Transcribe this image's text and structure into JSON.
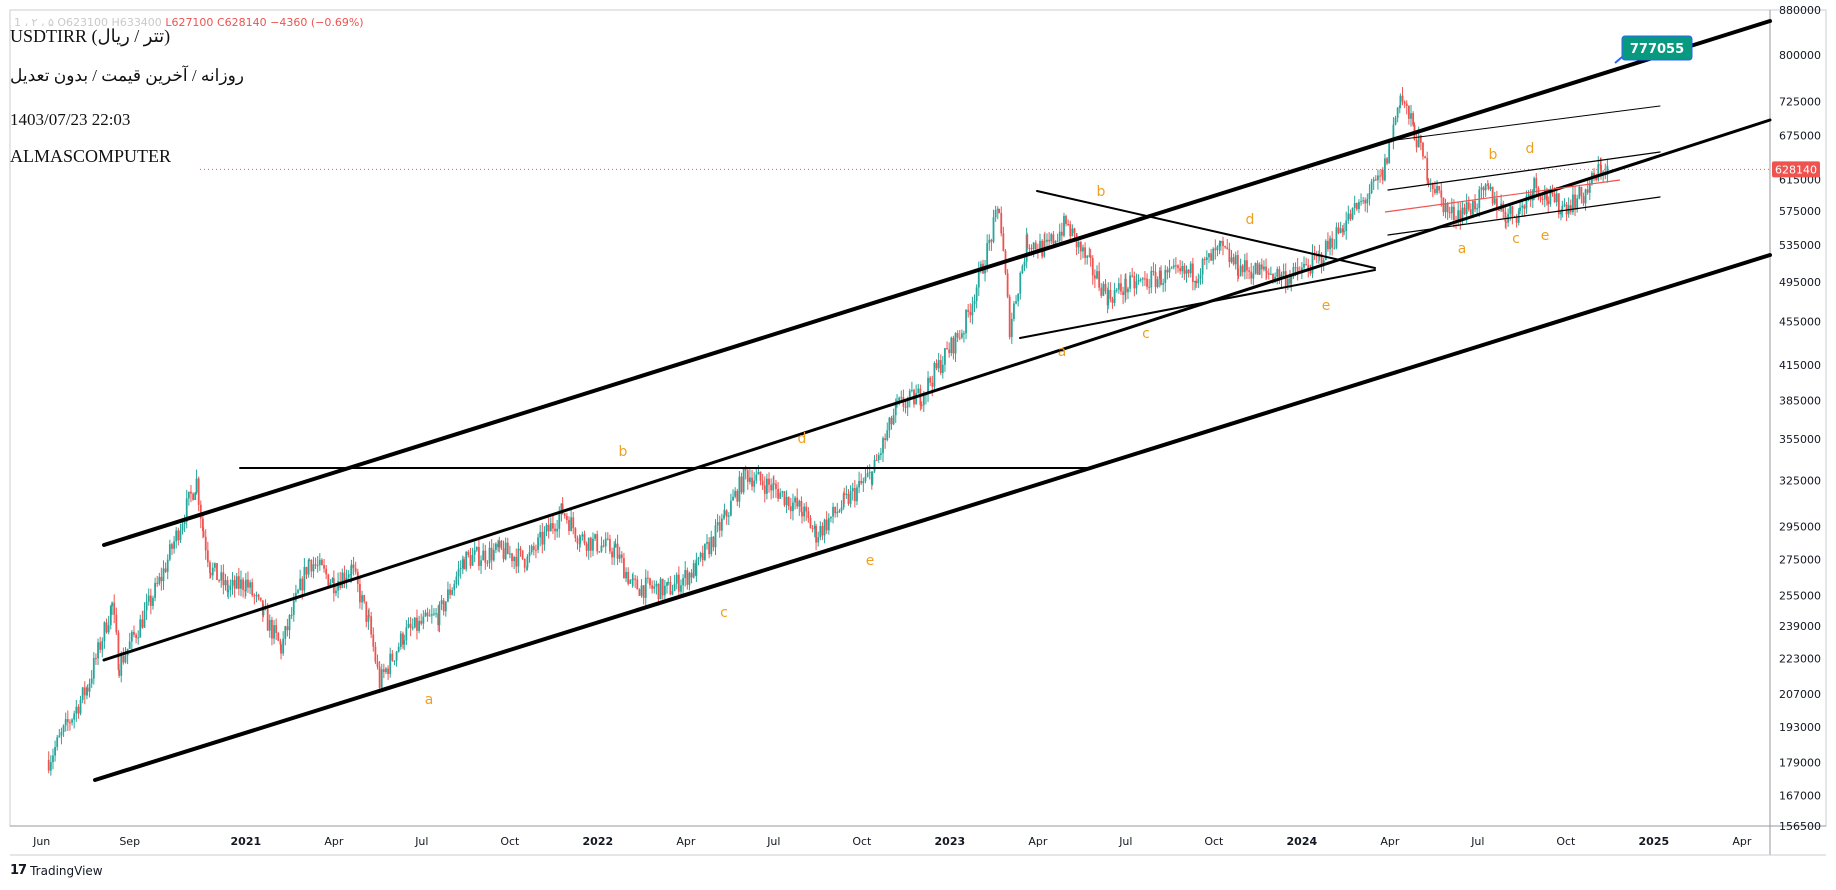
{
  "symbol_title": "USDTIRR (تتر / ریال)",
  "subtitle": "روزانه / آخرین قیمت / بدون تعدیل",
  "datetime": "1403/07/23 22:03",
  "author": "ALMASCOMPUTER",
  "ohlc": {
    "faded": "1 ، ۲ ، ۵ O623100 H633400",
    "low": "L627100",
    "close": "C628140",
    "change": "−4360 (−0.69%)"
  },
  "brand": {
    "name": "TradingView",
    "mark": "17"
  },
  "colors": {
    "up": "#26a69a",
    "down": "#ef5350",
    "wave_label": "#f0a020",
    "target_badge": "#089981",
    "price_badge": "#ef5350",
    "channel": "#000000"
  },
  "chart_data": {
    "type": "candlestick",
    "scale": "log",
    "ylim": [
      156500,
      880000
    ],
    "y_ticks": [
      "880000",
      "800000",
      "725000",
      "675000",
      "615000",
      "575000",
      "535000",
      "495000",
      "455000",
      "415000",
      "385000",
      "355000",
      "325000",
      "295000",
      "275000",
      "255000",
      "239000",
      "223000",
      "207000",
      "193000",
      "179000",
      "167000",
      "156500"
    ],
    "x_ticks": [
      "Jun",
      "Sep",
      "2021",
      "Apr",
      "Jul",
      "Oct",
      "2022",
      "Apr",
      "Jul",
      "Oct",
      "2023",
      "Apr",
      "Jul",
      "Oct",
      "2024",
      "Apr",
      "Jul",
      "Oct",
      "2025",
      "Apr"
    ],
    "current_price": "628140",
    "target_label": "777055",
    "wave_labels": [
      "a",
      "b",
      "c",
      "d",
      "e",
      "a",
      "b",
      "c",
      "d",
      "e",
      "a",
      "b",
      "c",
      "d",
      "e"
    ],
    "grid": false,
    "price_path": [
      [
        2020.44,
        180000
      ],
      [
        2020.55,
        210000
      ],
      [
        2020.62,
        250000
      ],
      [
        2020.64,
        220000
      ],
      [
        2020.7,
        240000
      ],
      [
        2020.76,
        265000
      ],
      [
        2020.82,
        300000
      ],
      [
        2020.86,
        325000
      ],
      [
        2020.88,
        290000
      ],
      [
        2020.9,
        270000
      ],
      [
        2020.95,
        258000
      ],
      [
        2021.0,
        262000
      ],
      [
        2021.05,
        245000
      ],
      [
        2021.1,
        228000
      ],
      [
        2021.18,
        275000
      ],
      [
        2021.25,
        262000
      ],
      [
        2021.3,
        270000
      ],
      [
        2021.35,
        240000
      ],
      [
        2021.38,
        212000
      ],
      [
        2021.45,
        235000
      ],
      [
        2021.55,
        245000
      ],
      [
        2021.62,
        275000
      ],
      [
        2021.72,
        280000
      ],
      [
        2021.8,
        275000
      ],
      [
        2021.9,
        305000
      ],
      [
        2021.95,
        288000
      ],
      [
        2022.05,
        280000
      ],
      [
        2022.1,
        260000
      ],
      [
        2022.2,
        258000
      ],
      [
        2022.28,
        270000
      ],
      [
        2022.36,
        300000
      ],
      [
        2022.42,
        330000
      ],
      [
        2022.5,
        320000
      ],
      [
        2022.58,
        305000
      ],
      [
        2022.62,
        290000
      ],
      [
        2022.7,
        310000
      ],
      [
        2022.78,
        330000
      ],
      [
        2022.85,
        380000
      ],
      [
        2022.92,
        390000
      ],
      [
        2022.98,
        420000
      ],
      [
        2023.04,
        450000
      ],
      [
        2023.1,
        520000
      ],
      [
        2023.14,
        580000
      ],
      [
        2023.17,
        450000
      ],
      [
        2023.22,
        540000
      ],
      [
        2023.27,
        530000
      ],
      [
        2023.33,
        560000
      ],
      [
        2023.4,
        510000
      ],
      [
        2023.45,
        480000
      ],
      [
        2023.5,
        490000
      ],
      [
        2023.6,
        500000
      ],
      [
        2023.7,
        505000
      ],
      [
        2023.77,
        530000
      ],
      [
        2023.82,
        510000
      ],
      [
        2023.9,
        505000
      ],
      [
        2023.97,
        500000
      ],
      [
        2024.05,
        520000
      ],
      [
        2024.12,
        560000
      ],
      [
        2024.18,
        590000
      ],
      [
        2024.23,
        620000
      ],
      [
        2024.28,
        735000
      ],
      [
        2024.32,
        680000
      ],
      [
        2024.36,
        620000
      ],
      [
        2024.42,
        570000
      ],
      [
        2024.48,
        580000
      ],
      [
        2024.53,
        600000
      ],
      [
        2024.58,
        570000
      ],
      [
        2024.62,
        575000
      ],
      [
        2024.66,
        610000
      ],
      [
        2024.7,
        590000
      ],
      [
        2024.74,
        580000
      ],
      [
        2024.8,
        595000
      ],
      [
        2024.85,
        630000
      ],
      [
        2024.87,
        628140
      ]
    ]
  }
}
